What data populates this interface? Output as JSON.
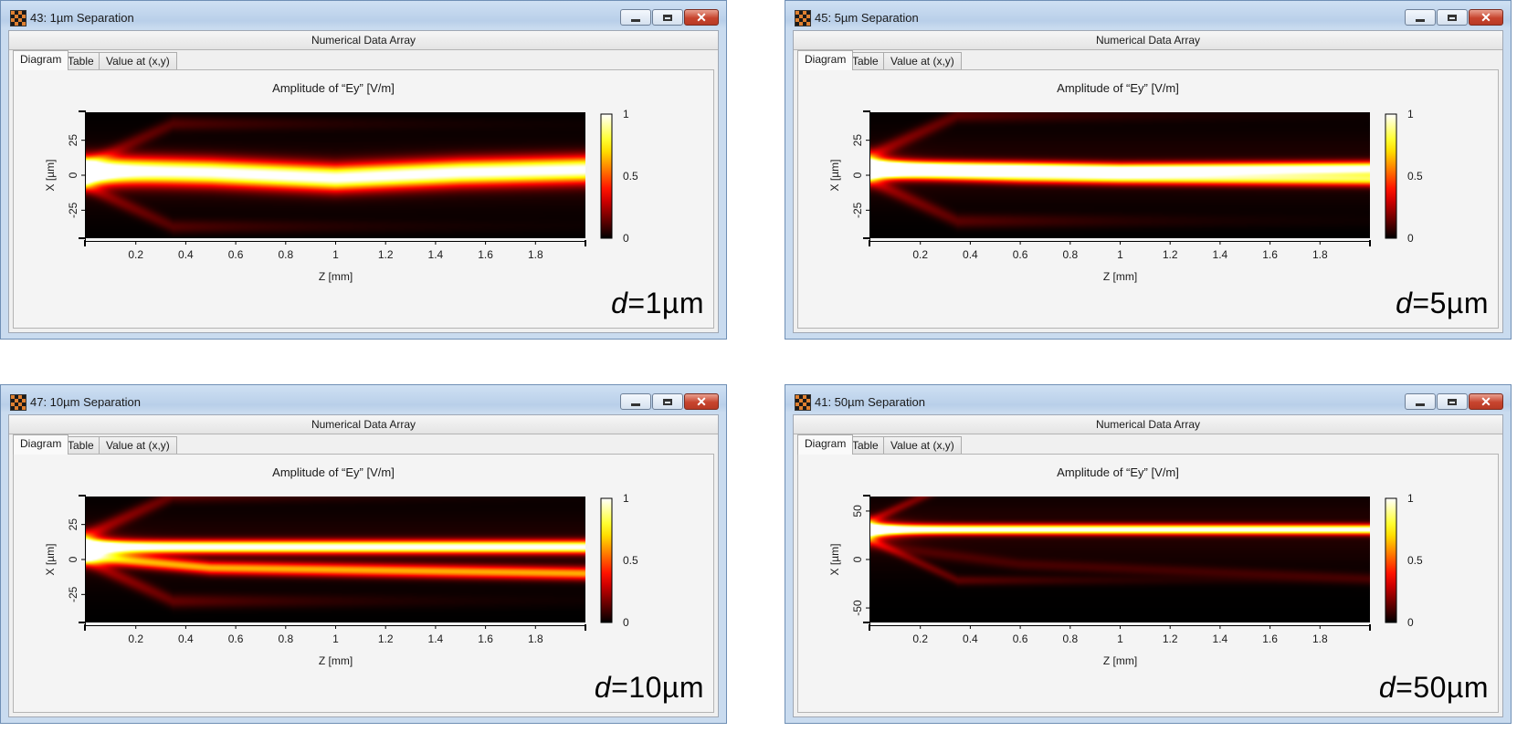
{
  "windows": [
    {
      "title": "43: 1µm Separation",
      "section_title": "Numerical Data Array",
      "tabs": [
        "Diagram",
        "Table",
        "Value at (x,y)"
      ],
      "active_tab": "Diagram",
      "plot_title": "Amplitude of “Ey”  [V/m]",
      "d_var": "d",
      "d_value": "=1µm",
      "chart_data": {
        "type": "heatmap",
        "title": "Amplitude of “Ey”  [V/m]",
        "xlabel": "Z [mm]",
        "ylabel": "X [µm]",
        "xlim": [
          0,
          2
        ],
        "ylim": [
          -45,
          45
        ],
        "xticks": [
          0.2,
          0.4,
          0.6,
          0.8,
          1,
          1.2,
          1.4,
          1.6,
          1.8
        ],
        "yticks": [
          25,
          0,
          -25
        ],
        "colorbar": {
          "range": [
            0,
            1
          ],
          "ticks": [
            1,
            0.5,
            0
          ],
          "colormap": "hot"
        },
        "source_x": 0,
        "input_halfwidth": 8,
        "arm_amplitude": 0.18,
        "core": [
          {
            "z": [
              0,
              0.5,
              1,
              1.5,
              2
            ],
            "x": [
              4,
              2,
              -2,
              2,
              4
            ],
            "width": 9,
            "amp": 1.0
          }
        ]
      }
    },
    {
      "title": "45: 5µm Separation",
      "section_title": "Numerical Data Array",
      "tabs": [
        "Diagram",
        "Table",
        "Value at (x,y)"
      ],
      "active_tab": "Diagram",
      "plot_title": "Amplitude of “Ey”  [V/m]",
      "d_var": "d",
      "d_value": "=5µm",
      "chart_data": {
        "type": "heatmap",
        "title": "Amplitude of “Ey”  [V/m]",
        "xlabel": "Z [mm]",
        "ylabel": "X [µm]",
        "xlim": [
          0,
          2
        ],
        "ylim": [
          -45,
          45
        ],
        "xticks": [
          0.2,
          0.4,
          0.6,
          0.8,
          1,
          1.2,
          1.4,
          1.6,
          1.8
        ],
        "yticks": [
          25,
          0,
          -25
        ],
        "colorbar": {
          "range": [
            0,
            1
          ],
          "ticks": [
            1,
            0.5,
            0
          ],
          "colormap": "hot"
        },
        "source_x": 5,
        "input_halfwidth": 9,
        "arm_amplitude": 0.2,
        "core": [
          {
            "z": [
              0,
              0.6,
              1,
              2
            ],
            "x": [
              6,
              5,
              4,
              5
            ],
            "width": 4.5,
            "amp": 1.0
          },
          {
            "z": [
              0,
              0.6,
              1,
              2
            ],
            "x": [
              2,
              -1,
              -2,
              -3
            ],
            "width": 4.5,
            "amp": 0.75
          }
        ]
      }
    },
    {
      "title": "47: 10µm Separation",
      "section_title": "Numerical Data Array",
      "tabs": [
        "Diagram",
        "Table",
        "Value at (x,y)"
      ],
      "active_tab": "Diagram",
      "plot_title": "Amplitude of “Ey”  [V/m]",
      "d_var": "d",
      "d_value": "=10µm",
      "chart_data": {
        "type": "heatmap",
        "title": "Amplitude of “Ey”  [V/m]",
        "xlabel": "Z [mm]",
        "ylabel": "X [µm]",
        "xlim": [
          0,
          2
        ],
        "ylim": [
          -45,
          45
        ],
        "xticks": [
          0.2,
          0.4,
          0.6,
          0.8,
          1,
          1.2,
          1.4,
          1.6,
          1.8
        ],
        "yticks": [
          25,
          0,
          -25
        ],
        "colorbar": {
          "range": [
            0,
            1
          ],
          "ticks": [
            1,
            0.5,
            0
          ],
          "colormap": "hot"
        },
        "source_x": 8,
        "input_halfwidth": 9,
        "arm_amplitude": 0.22,
        "core": [
          {
            "z": [
              0,
              2
            ],
            "x": [
              9,
              9
            ],
            "width": 4.5,
            "amp": 1.0
          },
          {
            "z": [
              0,
              0.5,
              2
            ],
            "x": [
              2,
              -6,
              -10
            ],
            "width": 4.5,
            "amp": 0.6
          }
        ]
      }
    },
    {
      "title": "41: 50µm Separation",
      "section_title": "Numerical Data Array",
      "tabs": [
        "Diagram",
        "Table",
        "Value at (x,y)"
      ],
      "active_tab": "Diagram",
      "plot_title": "Amplitude of “Ey”  [V/m]",
      "d_var": "d",
      "d_value": "=50µm",
      "chart_data": {
        "type": "heatmap",
        "title": "Amplitude of “Ey”  [V/m]",
        "xlabel": "Z [mm]",
        "ylabel": "X [µm]",
        "xlim": [
          0,
          2
        ],
        "ylim": [
          -65,
          65
        ],
        "xticks": [
          0.2,
          0.4,
          0.6,
          0.8,
          1,
          1.2,
          1.4,
          1.6,
          1.8
        ],
        "yticks": [
          50,
          0,
          -50
        ],
        "colorbar": {
          "range": [
            0,
            1
          ],
          "ticks": [
            1,
            0.5,
            0
          ],
          "colormap": "hot"
        },
        "source_x": 30,
        "input_halfwidth": 10,
        "arm_amplitude": 0.2,
        "core": [
          {
            "z": [
              0,
              2
            ],
            "x": [
              31,
              31
            ],
            "width": 5,
            "amp": 1.0
          },
          {
            "z": [
              0,
              0.6,
              2
            ],
            "x": [
              15,
              -5,
              -20
            ],
            "width": 6,
            "amp": 0.08
          }
        ]
      }
    }
  ]
}
